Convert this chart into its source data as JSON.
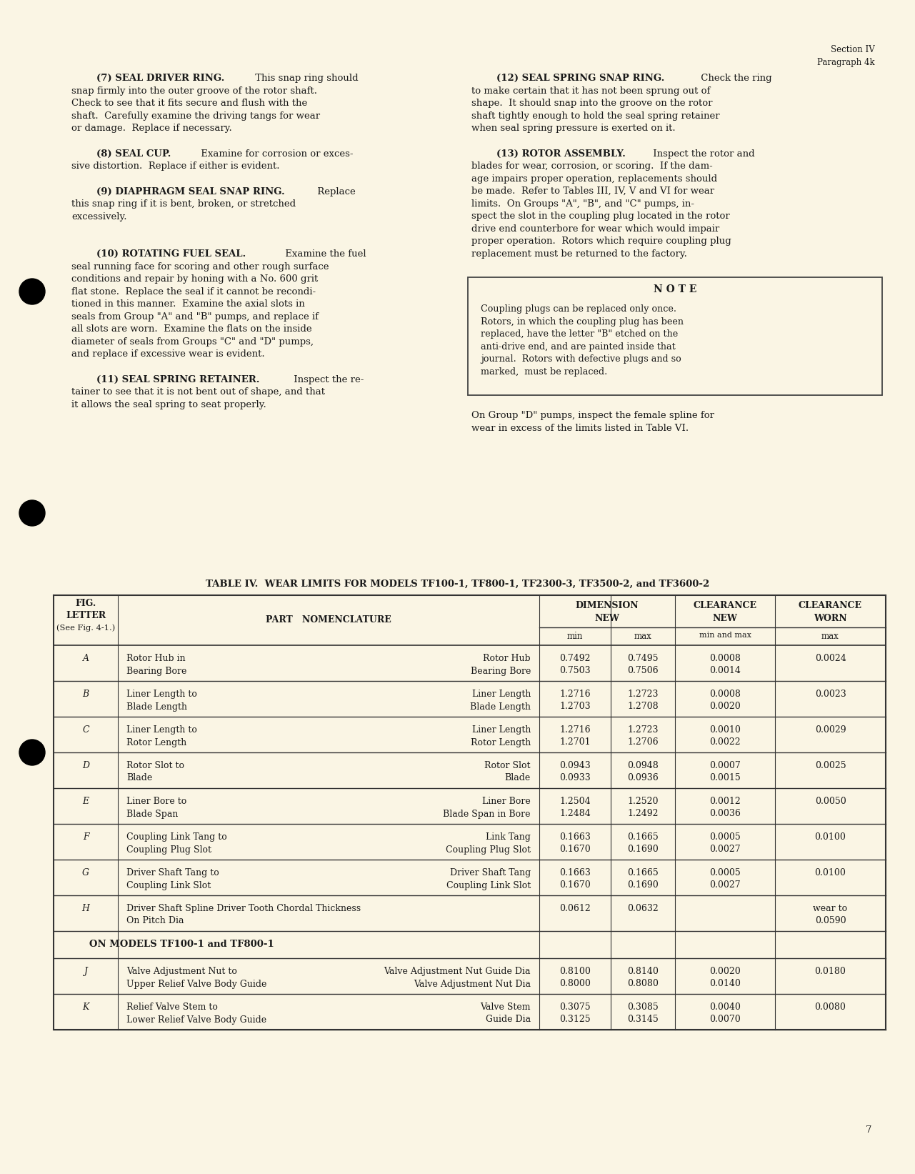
{
  "bg_color": "#faf5e4",
  "text_color": "#1a1a1a",
  "page_width": 12.81,
  "page_height": 16.43,
  "note_text": "Coupling plugs can be replaced only once.\nRotors, in which the coupling plug has been\nreplaced, have the letter \"B\" etched on the\nanti-drive end, and are painted inside that\njournal.  Rotors with defective plugs and so\nmarked,  must be replaced.",
  "group_d_text": "On Group \"D\" pumps, inspect the female spline for\nwear in excess of the limits listed in Table VI.",
  "table_title": "TABLE IV.  WEAR LIMITS FOR MODELS TF100-1, TF800-1, TF2300-3, TF3500-2, and TF3600-2",
  "models_section": "ON MODELS TF100-1 and TF800-1",
  "page_number": "7",
  "table_rows": [
    {
      "letter": "A",
      "desc_left": "Rotor Hub in\nBearing Bore",
      "desc_right": "Rotor Hub\nBearing Bore",
      "dim_min": "0.7492\n0.7503",
      "dim_max": "0.7495\n0.7506",
      "cl_new": "0.0008\n0.0014",
      "cl_worn": "0.0024"
    },
    {
      "letter": "B",
      "desc_left": "Liner Length to\nBlade Length",
      "desc_right": "Liner Length\nBlade Length",
      "dim_min": "1.2716\n1.2703",
      "dim_max": "1.2723\n1.2708",
      "cl_new": "0.0008\n0.0020",
      "cl_worn": "0.0023"
    },
    {
      "letter": "C",
      "desc_left": "Liner Length to\nRotor Length",
      "desc_right": "Liner Length\nRotor Length",
      "dim_min": "1.2716\n1.2701",
      "dim_max": "1.2723\n1.2706",
      "cl_new": "0.0010\n0.0022",
      "cl_worn": "0.0029"
    },
    {
      "letter": "D",
      "desc_left": "Rotor Slot to\nBlade",
      "desc_right": "Rotor Slot\nBlade",
      "dim_min": "0.0943\n0.0933",
      "dim_max": "0.0948\n0.0936",
      "cl_new": "0.0007\n0.0015",
      "cl_worn": "0.0025"
    },
    {
      "letter": "E",
      "desc_left": "Liner Bore to\nBlade Span",
      "desc_right": "Liner Bore\nBlade Span in Bore",
      "dim_min": "1.2504\n1.2484",
      "dim_max": "1.2520\n1.2492",
      "cl_new": "0.0012\n0.0036",
      "cl_worn": "0.0050"
    },
    {
      "letter": "F",
      "desc_left": "Coupling Link Tang to\nCoupling Plug Slot",
      "desc_right": "Link Tang\nCoupling Plug Slot",
      "dim_min": "0.1663\n0.1670",
      "dim_max": "0.1665\n0.1690",
      "cl_new": "0.0005\n0.0027",
      "cl_worn": "0.0100"
    },
    {
      "letter": "G",
      "desc_left": "Driver Shaft Tang to\nCoupling Link Slot",
      "desc_right": "Driver Shaft Tang\nCoupling Link Slot",
      "dim_min": "0.1663\n0.1670",
      "dim_max": "0.1665\n0.1690",
      "cl_new": "0.0005\n0.0027",
      "cl_worn": "0.0100"
    },
    {
      "letter": "H",
      "desc_left": "Driver Shaft Spline Driver Tooth Chordal Thickness\nOn Pitch Dia",
      "desc_right": "",
      "dim_min": "0.0612",
      "dim_max": "0.0632",
      "cl_new": "",
      "cl_worn": "wear to\n0.0590"
    }
  ],
  "extra_rows": [
    {
      "letter": "J",
      "desc_left": "Valve Adjustment Nut to\nUpper Relief Valve Body Guide",
      "desc_right": "Valve Adjustment Nut Guide Dia\nValve Adjustment Nut Dia",
      "dim_min": "0.8100\n0.8000",
      "dim_max": "0.8140\n0.8080",
      "cl_new": "0.0020\n0.0140",
      "cl_worn": "0.0180"
    },
    {
      "letter": "K",
      "desc_left": "Relief Valve Stem to\nLower Relief Valve Body Guide",
      "desc_right": "Valve Stem\nGuide Dia",
      "dim_min": "0.3075\n0.3125",
      "dim_max": "0.3085\n0.3145",
      "cl_new": "0.0040\n0.0070",
      "cl_worn": "0.0080"
    }
  ]
}
